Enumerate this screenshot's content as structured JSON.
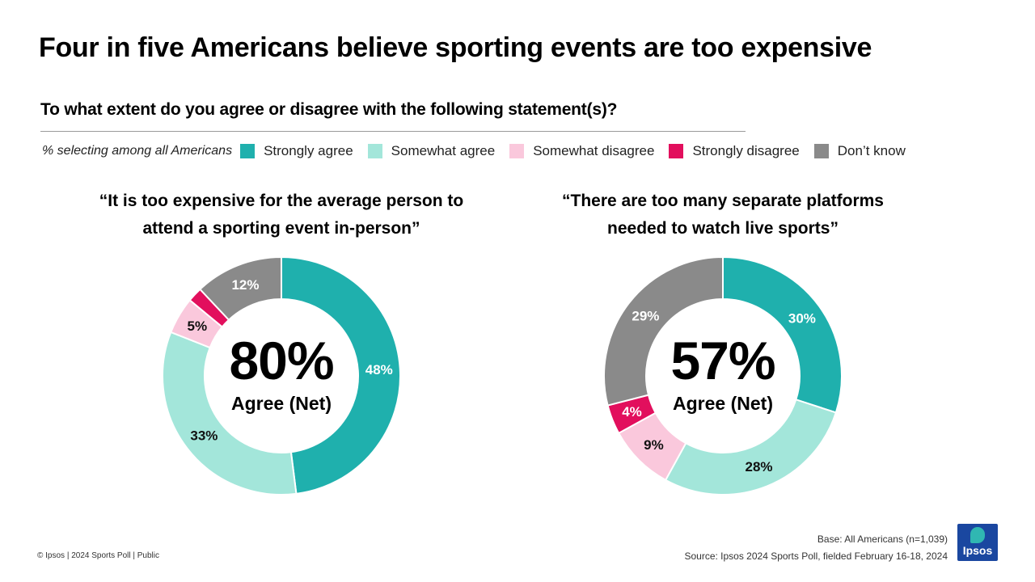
{
  "title": "Four in five Americans believe sporting events are too expensive",
  "question": "To what extent do you agree or disagree with the following statement(s)?",
  "legend": {
    "note": "% selecting among all Americans",
    "items": [
      {
        "label": "Strongly agree",
        "color": "#1fb0ad"
      },
      {
        "label": "Somewhat agree",
        "color": "#a3e6da"
      },
      {
        "label": "Somewhat disagree",
        "color": "#fac8dc"
      },
      {
        "label": "Strongly disagree",
        "color": "#e20f5d"
      },
      {
        "label": "Don’t know",
        "color": "#8a8a8a"
      }
    ]
  },
  "chart_data": [
    {
      "type": "pie",
      "title_lines": [
        "“It is too expensive for the average person to",
        "attend a sporting event in-person”"
      ],
      "categories": [
        "Strongly agree",
        "Somewhat agree",
        "Somewhat disagree",
        "Strongly disagree",
        "Don’t know"
      ],
      "values": [
        48,
        33,
        5,
        2,
        12
      ],
      "labels": [
        "48%",
        "33%",
        "5%",
        "",
        "12%"
      ],
      "center_value": "80%",
      "center_label": "Agree (Net)"
    },
    {
      "type": "pie",
      "title_lines": [
        "“There are too many separate platforms",
        "needed to watch live sports”"
      ],
      "categories": [
        "Strongly agree",
        "Somewhat agree",
        "Somewhat disagree",
        "Strongly disagree",
        "Don’t know"
      ],
      "values": [
        30,
        28,
        9,
        4,
        29
      ],
      "labels": [
        "30%",
        "28%",
        "9%",
        "4%",
        "29%"
      ],
      "center_value": "57%",
      "center_label": "Agree (Net)"
    }
  ],
  "footer": {
    "copyright": "© Ipsos | 2024 Sports Poll | Public",
    "base": "Base: All Americans (n=1,039)",
    "source": "Source:  Ipsos 2024 Sports Poll, fielded February 16-18, 2024"
  },
  "logo": {
    "text": "Ipsos"
  }
}
